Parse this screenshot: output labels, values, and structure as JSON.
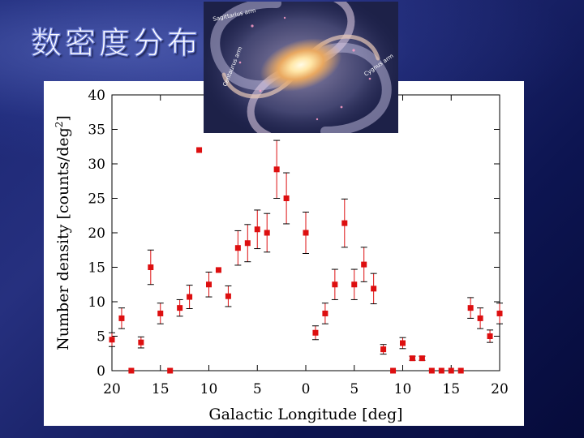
{
  "slide": {
    "title": "数密度分布"
  },
  "galaxy_image": {
    "arm_labels": [
      "Sagittarius arm",
      "Centaurus arm",
      "Cygnus arm"
    ]
  },
  "colors": {
    "marker": "#dd0f10",
    "background_dark": "#0d1552",
    "background_light": "#26307f"
  },
  "chart_data": {
    "type": "scatter",
    "title": "",
    "xlabel": "Galactic Longitude [deg]",
    "ylabel_main": "Number density [counts/deg",
    "ylabel_sup": "2",
    "ylabel_end": "]",
    "xlim": [
      20,
      -20
    ],
    "ylim": [
      0,
      40
    ],
    "x_ticks": [
      20,
      15,
      10,
      5,
      0,
      5,
      10,
      15,
      20
    ],
    "y_ticks": [
      0,
      5,
      10,
      15,
      20,
      25,
      30,
      35,
      40
    ],
    "grid": false,
    "legend": "none",
    "series": [
      {
        "points": [
          {
            "x": 20,
            "y": 4.5,
            "err": 1.0
          },
          {
            "x": 19,
            "y": 7.6,
            "err": 1.5
          },
          {
            "x": 18,
            "y": 0,
            "err": 0
          },
          {
            "x": 17,
            "y": 4.1,
            "err": 0.8
          },
          {
            "x": 16,
            "y": 15,
            "err": 2.5
          },
          {
            "x": 15,
            "y": 8.3,
            "err": 1.5
          },
          {
            "x": 14,
            "y": 0,
            "err": 0
          },
          {
            "x": 13,
            "y": 9.1,
            "err": 1.2
          },
          {
            "x": 12,
            "y": 10.7,
            "err": 1.7
          },
          {
            "x": 11,
            "y": 32,
            "err": 0
          },
          {
            "x": 10,
            "y": 12.5,
            "err": 1.8
          },
          {
            "x": 9,
            "y": 14.6,
            "err": 0
          },
          {
            "x": 8,
            "y": 10.8,
            "err": 1.5
          },
          {
            "x": 7,
            "y": 17.8,
            "err": 2.5
          },
          {
            "x": 6,
            "y": 18.5,
            "err": 2.7
          },
          {
            "x": 5,
            "y": 20.5,
            "err": 2.8
          },
          {
            "x": 4,
            "y": 20,
            "err": 2.8
          },
          {
            "x": 3,
            "y": 29.2,
            "err": 4.2
          },
          {
            "x": 2,
            "y": 25,
            "err": 3.7
          },
          {
            "x": 0,
            "y": 20,
            "err": 3.0
          },
          {
            "x": -1,
            "y": 5.5,
            "err": 1.0
          },
          {
            "x": -2,
            "y": 8.3,
            "err": 1.5
          },
          {
            "x": -3,
            "y": 12.5,
            "err": 2.2
          },
          {
            "x": -4,
            "y": 21.4,
            "err": 3.5
          },
          {
            "x": -5,
            "y": 12.5,
            "err": 2.2
          },
          {
            "x": -6,
            "y": 15.4,
            "err": 2.5
          },
          {
            "x": -7,
            "y": 11.9,
            "err": 2.2
          },
          {
            "x": -8,
            "y": 3.1,
            "err": 0.7
          },
          {
            "x": -9,
            "y": 0,
            "err": 0
          },
          {
            "x": -10,
            "y": 4.0,
            "err": 0.8
          },
          {
            "x": -11,
            "y": 1.8,
            "err": 0.3
          },
          {
            "x": -12,
            "y": 1.8,
            "err": 0.3
          },
          {
            "x": -13,
            "y": 0,
            "err": 0
          },
          {
            "x": -14,
            "y": 0,
            "err": 0
          },
          {
            "x": -15,
            "y": 0,
            "err": 0
          },
          {
            "x": -16,
            "y": 0,
            "err": 0
          },
          {
            "x": -17,
            "y": 9.1,
            "err": 1.5
          },
          {
            "x": -18,
            "y": 7.6,
            "err": 1.5
          },
          {
            "x": -19,
            "y": 5.0,
            "err": 0.9
          },
          {
            "x": -20,
            "y": 8.3,
            "err": 1.5
          }
        ]
      }
    ]
  }
}
